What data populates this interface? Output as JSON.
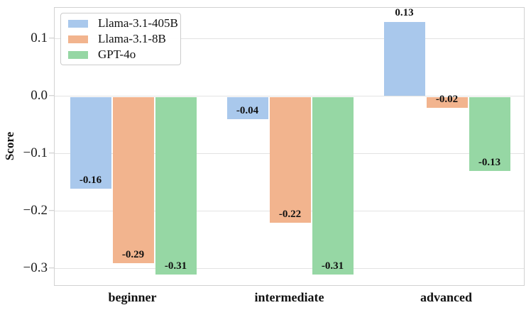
{
  "chart_data": {
    "type": "bar",
    "title": "",
    "xlabel": "",
    "ylabel": "Score",
    "categories": [
      "beginner",
      "intermediate",
      "advanced"
    ],
    "series": [
      {
        "name": "Llama-3.1-405B",
        "color": "#a9c8ec",
        "values": [
          -0.16,
          -0.04,
          0.13
        ],
        "value_labels": [
          "-0.16",
          "-0.04",
          "0.13"
        ]
      },
      {
        "name": "Llama-3.1-8B",
        "color": "#f2b48e",
        "values": [
          -0.29,
          -0.22,
          -0.02
        ],
        "value_labels": [
          "-0.29",
          "-0.22",
          "-0.02"
        ]
      },
      {
        "name": "GPT-4o",
        "color": "#96d7a4",
        "values": [
          -0.31,
          -0.31,
          -0.13
        ],
        "value_labels": [
          "-0.31",
          "-0.31",
          "-0.13"
        ]
      }
    ],
    "y_ticks": [
      {
        "value": 0.1,
        "label": "0.1"
      },
      {
        "value": 0.0,
        "label": "0.0"
      },
      {
        "value": -0.1,
        "label": "−0.1"
      },
      {
        "value": -0.2,
        "label": "−0.2"
      },
      {
        "value": -0.3,
        "label": "−0.3"
      }
    ],
    "ylim": [
      -0.331,
      0.1543
    ],
    "grid": true,
    "legend_position": "upper-left"
  }
}
